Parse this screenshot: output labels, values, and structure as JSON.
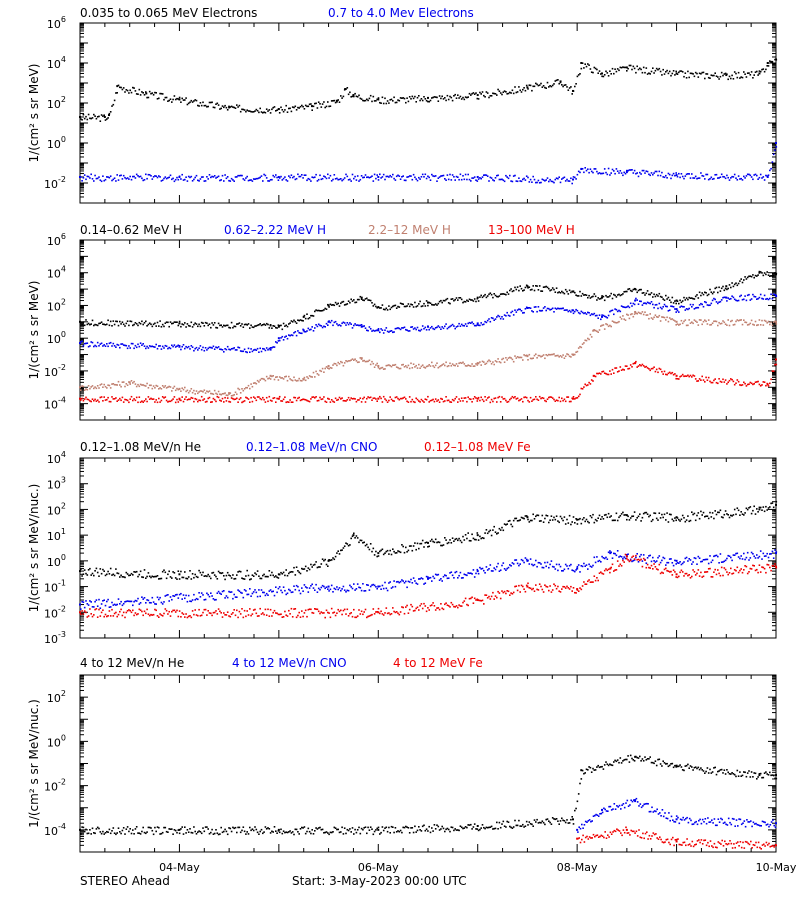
{
  "colors": {
    "black": "#000000",
    "blue": "#0000ee",
    "tan": "#c08070",
    "red": "#ee0000"
  },
  "footer": {
    "left": "STEREO Ahead",
    "start": "Start:  3-May-2023 00:00 UTC"
  },
  "chart_data": [
    {
      "type": "scatter",
      "log_y": true,
      "xlim": [
        "2023-05-03T00:00",
        "2023-05-10T00:00"
      ],
      "ylim": [
        0.001,
        1000000
      ],
      "ylabel": "1/(cm² s sr MeV)",
      "ytick_labels": [
        {
          "value": 0.01,
          "label": "10^-2"
        },
        {
          "value": 1,
          "label": "10^0"
        },
        {
          "value": 100,
          "label": "10^2"
        },
        {
          "value": 10000,
          "label": "10^4"
        },
        {
          "value": 1000000,
          "label": "10^6"
        }
      ],
      "series": [
        {
          "name": "0.035 to 0.065 MeV Electrons",
          "color": "#000000",
          "x": [
            "2023-05-03T00:00",
            "2023-05-03T06:00",
            "2023-05-03T07:00",
            "2023-05-03T09:00",
            "2023-05-03T16:00",
            "2023-05-04T00:00",
            "2023-05-04T12:00",
            "2023-05-05T00:00",
            "2023-05-05T08:00",
            "2023-05-05T14:00",
            "2023-05-05T16:00",
            "2023-05-05T18:00",
            "2023-05-06T00:00",
            "2023-05-06T12:00",
            "2023-05-07T00:00",
            "2023-05-07T12:00",
            "2023-05-07T20:00",
            "2023-05-07T23:00",
            "2023-05-08T01:00",
            "2023-05-08T06:00",
            "2023-05-08T12:00",
            "2023-05-09T00:00",
            "2023-05-09T12:00",
            "2023-05-09T20:00",
            "2023-05-09T22:00",
            "2023-05-10T00:00"
          ],
          "y": [
            20,
            20,
            25,
            700,
            300,
            150,
            60,
            50,
            70,
            130,
            500,
            250,
            150,
            180,
            250,
            600,
            1200,
            400,
            10000,
            3000,
            6000,
            3000,
            2500,
            3000,
            10000,
            15000
          ]
        },
        {
          "name": "0.7 to 4.0 Mev Electrons",
          "color": "#0000ee",
          "x": [
            "2023-05-03T00:00",
            "2023-05-04T00:00",
            "2023-05-05T00:00",
            "2023-05-06T00:00",
            "2023-05-07T00:00",
            "2023-05-07T23:00",
            "2023-05-08T01:00",
            "2023-05-08T12:00",
            "2023-05-09T00:00",
            "2023-05-09T22:00",
            "2023-05-10T00:00"
          ],
          "y": [
            0.02,
            0.02,
            0.02,
            0.02,
            0.02,
            0.015,
            0.05,
            0.035,
            0.025,
            0.02,
            1.0
          ]
        }
      ]
    },
    {
      "type": "scatter",
      "log_y": true,
      "xlim": [
        "2023-05-03T00:00",
        "2023-05-10T00:00"
      ],
      "ylim": [
        1e-05,
        1000000
      ],
      "ylabel": "1/(cm² s sr MeV)",
      "ytick_labels": [
        {
          "value": 0.0001,
          "label": "10^-4"
        },
        {
          "value": 0.01,
          "label": "10^-2"
        },
        {
          "value": 1,
          "label": "10^0"
        },
        {
          "value": 100,
          "label": "10^2"
        },
        {
          "value": 10000,
          "label": "10^4"
        },
        {
          "value": 1000000,
          "label": "10^6"
        }
      ],
      "series": [
        {
          "name": "0.14–0.62 MeV H",
          "color": "#000000",
          "x": [
            "2023-05-03T00:00",
            "2023-05-04T00:00",
            "2023-05-04T22:00",
            "2023-05-05T00:00",
            "2023-05-05T06:00",
            "2023-05-05T12:00",
            "2023-05-05T20:00",
            "2023-05-06T00:00",
            "2023-05-06T12:00",
            "2023-05-07T00:00",
            "2023-05-07T12:00",
            "2023-05-07T23:00",
            "2023-05-08T06:00",
            "2023-05-08T14:00",
            "2023-05-09T00:00",
            "2023-05-09T12:00",
            "2023-05-09T20:00",
            "2023-05-10T00:00"
          ],
          "y": [
            10,
            8,
            6,
            5,
            20,
            100,
            300,
            80,
            150,
            300,
            1500,
            700,
            300,
            1000,
            200,
            1500,
            10000,
            8000
          ]
        },
        {
          "name": "0.62–2.22 MeV H",
          "color": "#0000ee",
          "x": [
            "2023-05-03T00:00",
            "2023-05-04T00:00",
            "2023-05-04T22:00",
            "2023-05-05T00:00",
            "2023-05-05T06:00",
            "2023-05-05T12:00",
            "2023-05-05T20:00",
            "2023-05-06T00:00",
            "2023-05-06T12:00",
            "2023-05-07T00:00",
            "2023-05-07T12:00",
            "2023-05-07T23:00",
            "2023-05-08T06:00",
            "2023-05-08T14:00",
            "2023-05-09T00:00",
            "2023-05-09T12:00",
            "2023-05-10T00:00"
          ],
          "y": [
            0.5,
            0.3,
            0.2,
            1.0,
            3.0,
            10,
            5.0,
            3.0,
            5.0,
            8.0,
            70,
            50,
            20,
            200,
            60,
            300,
            400
          ]
        },
        {
          "name": "2.2–12 MeV H",
          "color": "#c08070",
          "x": [
            "2023-05-03T00:00",
            "2023-05-03T12:00",
            "2023-05-04T00:00",
            "2023-05-04T12:00",
            "2023-05-04T22:00",
            "2023-05-05T06:00",
            "2023-05-05T12:00",
            "2023-05-05T20:00",
            "2023-05-06T00:00",
            "2023-05-07T00:00",
            "2023-05-07T12:00",
            "2023-05-07T23:00",
            "2023-05-08T04:00",
            "2023-05-08T14:00",
            "2023-05-09T00:00",
            "2023-05-10T00:00"
          ],
          "y": [
            0.001,
            0.002,
            0.0008,
            0.0004,
            0.005,
            0.003,
            0.02,
            0.06,
            0.02,
            0.03,
            0.08,
            0.1,
            3,
            40,
            10,
            10
          ]
        },
        {
          "name": "13–100 MeV H",
          "color": "#ee0000",
          "x": [
            "2023-05-03T00:00",
            "2023-05-04T00:00",
            "2023-05-05T00:00",
            "2023-05-06T00:00",
            "2023-05-07T00:00",
            "2023-05-07T23:00",
            "2023-05-08T04:00",
            "2023-05-08T14:00",
            "2023-05-09T00:00",
            "2023-05-09T22:00",
            "2023-05-10T00:00"
          ],
          "y": [
            0.0002,
            0.0002,
            0.0002,
            0.0002,
            0.0002,
            0.0002,
            0.005,
            0.03,
            0.005,
            0.0015,
            0.05
          ]
        }
      ]
    },
    {
      "type": "scatter",
      "log_y": true,
      "xlim": [
        "2023-05-03T00:00",
        "2023-05-10T00:00"
      ],
      "ylim": [
        0.001,
        10000
      ],
      "ylabel": "1/(cm² s sr MeV/nuc.)",
      "ytick_labels": [
        {
          "value": 0.001,
          "label": "10^-3"
        },
        {
          "value": 0.01,
          "label": "10^-2"
        },
        {
          "value": 0.1,
          "label": "10^-1"
        },
        {
          "value": 1,
          "label": "10^0"
        },
        {
          "value": 10,
          "label": "10^1"
        },
        {
          "value": 100,
          "label": "10^2"
        },
        {
          "value": 1000,
          "label": "10^3"
        },
        {
          "value": 10000,
          "label": "10^4"
        }
      ],
      "series": [
        {
          "name": "0.12–1.08 MeV/n He",
          "color": "#000000",
          "x": [
            "2023-05-03T00:00",
            "2023-05-04T00:00",
            "2023-05-05T00:00",
            "2023-05-05T12:00",
            "2023-05-05T18:00",
            "2023-05-06T00:00",
            "2023-05-06T12:00",
            "2023-05-07T00:00",
            "2023-05-07T12:00",
            "2023-05-08T00:00",
            "2023-05-08T12:00",
            "2023-05-09T00:00",
            "2023-05-09T20:00",
            "2023-05-10T00:00"
          ],
          "y": [
            0.4,
            0.3,
            0.3,
            1.0,
            10,
            2.0,
            5.0,
            10,
            50,
            40,
            60,
            50,
            100,
            150
          ]
        },
        {
          "name": "0.12–1.08 MeV/n CNO",
          "color": "#0000ee",
          "x": [
            "2023-05-03T00:00",
            "2023-05-05T12:00",
            "2023-05-06T00:00",
            "2023-05-06T12:00",
            "2023-05-07T00:00",
            "2023-05-07T12:00",
            "2023-05-08T00:00",
            "2023-05-08T08:00",
            "2023-05-08T12:00",
            "2023-05-09T00:00",
            "2023-05-10T00:00"
          ],
          "y": [
            0.02,
            0.1,
            0.1,
            0.2,
            0.4,
            1.0,
            0.5,
            2.0,
            1.5,
            1.0,
            2.0
          ]
        },
        {
          "name": "0.12–1.08 MeV Fe",
          "color": "#ee0000",
          "x": [
            "2023-05-03T00:00",
            "2023-05-06T00:00",
            "2023-05-07T00:00",
            "2023-05-07T12:00",
            "2023-05-08T00:00",
            "2023-05-08T08:00",
            "2023-05-08T12:00",
            "2023-05-09T00:00",
            "2023-05-10T00:00"
          ],
          "y": [
            0.01,
            0.01,
            0.03,
            0.1,
            0.08,
            0.5,
            1.5,
            0.3,
            0.6
          ]
        }
      ]
    },
    {
      "type": "scatter",
      "log_y": true,
      "xlim": [
        "2023-05-03T00:00",
        "2023-05-10T00:00"
      ],
      "ylim": [
        1e-05,
        1000
      ],
      "ylabel": "1/(cm² s sr MeV/nuc.)",
      "ytick_labels": [
        {
          "value": 0.0001,
          "label": "10^-4"
        },
        {
          "value": 0.01,
          "label": "10^-2"
        },
        {
          "value": 1,
          "label": "10^0"
        },
        {
          "value": 100,
          "label": "10^2"
        }
      ],
      "series": [
        {
          "name": "4 to 12 MeV/n He",
          "color": "#000000",
          "x": [
            "2023-05-03T00:00",
            "2023-05-04T00:00",
            "2023-05-05T00:00",
            "2023-05-06T00:00",
            "2023-05-07T00:00",
            "2023-05-07T23:00",
            "2023-05-08T01:00",
            "2023-05-08T14:00",
            "2023-05-09T00:00",
            "2023-05-09T20:00",
            "2023-05-10T00:00"
          ],
          "y": [
            0.0001,
            0.0001,
            0.0001,
            0.0001,
            0.00015,
            0.0003,
            0.05,
            0.2,
            0.08,
            0.03,
            0.03
          ]
        },
        {
          "name": "4 to 12 MeV/n CNO",
          "color": "#0000ee",
          "x": [
            "2023-05-08T00:00",
            "2023-05-08T06:00",
            "2023-05-08T14:00",
            "2023-05-09T00:00",
            "2023-05-10T00:00"
          ],
          "y": [
            0.0001,
            0.0008,
            0.002,
            0.0003,
            0.0002
          ]
        },
        {
          "name": "4 to 12 MeV Fe",
          "color": "#ee0000",
          "x": [
            "2023-05-08T00:00",
            "2023-05-08T12:00",
            "2023-05-09T00:00",
            "2023-05-10T00:00"
          ],
          "y": [
            4e-05,
            0.0001,
            3e-05,
            2e-05
          ]
        }
      ]
    }
  ],
  "x_tick_labels": [
    {
      "date": "2023-05-04T00:00",
      "label": "04-May"
    },
    {
      "date": "2023-05-06T00:00",
      "label": "06-May"
    },
    {
      "date": "2023-05-08T00:00",
      "label": "08-May"
    },
    {
      "date": "2023-05-10T00:00",
      "label": "10-May"
    }
  ]
}
